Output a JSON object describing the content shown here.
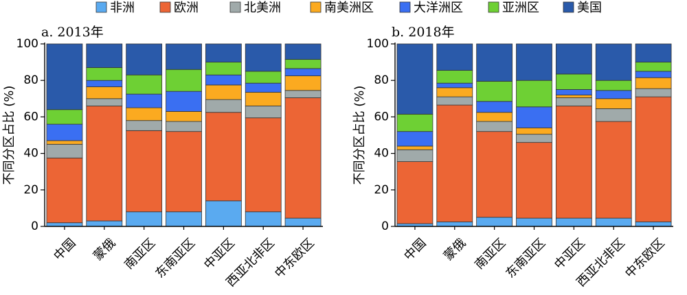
{
  "legend": [
    {
      "name": "非洲",
      "color": "#5aaaf0"
    },
    {
      "name": "欧洲",
      "color": "#ec6535"
    },
    {
      "name": "北美洲",
      "color": "#a0aaaa"
    },
    {
      "name": "南美洲区",
      "color": "#fbaa20"
    },
    {
      "name": "大洋洲区",
      "color": "#3a6ff2"
    },
    {
      "name": "亚洲区",
      "color": "#6ed034"
    },
    {
      "name": "美国",
      "color": "#2a5aaa"
    }
  ],
  "chart_data": [
    {
      "type": "bar",
      "stacked": true,
      "title": "a. 2013年",
      "ylabel": "不同分区占比 (%)",
      "ylim": [
        0,
        100
      ],
      "yticks": [
        0,
        20,
        40,
        60,
        80,
        100
      ],
      "categories": [
        "中国",
        "蒙俄",
        "南亚区",
        "东南亚区",
        "中亚区",
        "西亚北非区",
        "中东欧区"
      ],
      "series": [
        {
          "name": "非洲",
          "values": [
            2,
            3,
            8,
            8,
            14,
            8,
            4.5
          ]
        },
        {
          "name": "欧洲",
          "values": [
            35.5,
            63,
            44.5,
            44,
            48.5,
            51.5,
            66
          ]
        },
        {
          "name": "北美洲",
          "values": [
            7.5,
            4,
            5.5,
            5.5,
            7,
            6.5,
            4
          ]
        },
        {
          "name": "南美洲区",
          "values": [
            2,
            6.5,
            7,
            5.5,
            8,
            7.5,
            8
          ]
        },
        {
          "name": "大洋洲区",
          "values": [
            9,
            3.5,
            7.5,
            11,
            5.5,
            5,
            4
          ]
        },
        {
          "name": "亚洲区",
          "values": [
            8,
            7,
            10.5,
            12,
            7,
            6.5,
            5
          ]
        },
        {
          "name": "美国",
          "values": [
            36,
            13,
            17,
            14,
            10,
            15,
            8.5
          ]
        }
      ]
    },
    {
      "type": "bar",
      "stacked": true,
      "title": "b. 2018年",
      "ylabel": "不同分区占比 (%)",
      "ylim": [
        0,
        100
      ],
      "yticks": [
        0,
        20,
        40,
        60,
        80,
        100
      ],
      "categories": [
        "中国",
        "蒙俄",
        "南亚区",
        "东南亚区",
        "中亚区",
        "西亚北非区",
        "中东欧区"
      ],
      "series": [
        {
          "name": "非洲",
          "values": [
            1.5,
            2.5,
            5,
            4.5,
            4.5,
            4.5,
            2.5
          ]
        },
        {
          "name": "欧洲",
          "values": [
            34,
            64,
            47,
            41.5,
            61.5,
            53,
            68.5
          ]
        },
        {
          "name": "北美洲",
          "values": [
            6.5,
            4.5,
            5.5,
            4.5,
            4.5,
            7,
            4.5
          ]
        },
        {
          "name": "南美洲区",
          "values": [
            2,
            5,
            5,
            3.5,
            1.5,
            5.5,
            6
          ]
        },
        {
          "name": "大洋洲区",
          "values": [
            8,
            2.5,
            6,
            11.5,
            3,
            4.5,
            3.5
          ]
        },
        {
          "name": "亚洲区",
          "values": [
            9.5,
            7,
            11,
            14.5,
            8.5,
            5.5,
            5
          ]
        },
        {
          "name": "美国",
          "values": [
            38.5,
            14.5,
            20.5,
            20,
            16.5,
            20,
            10
          ]
        }
      ]
    }
  ]
}
